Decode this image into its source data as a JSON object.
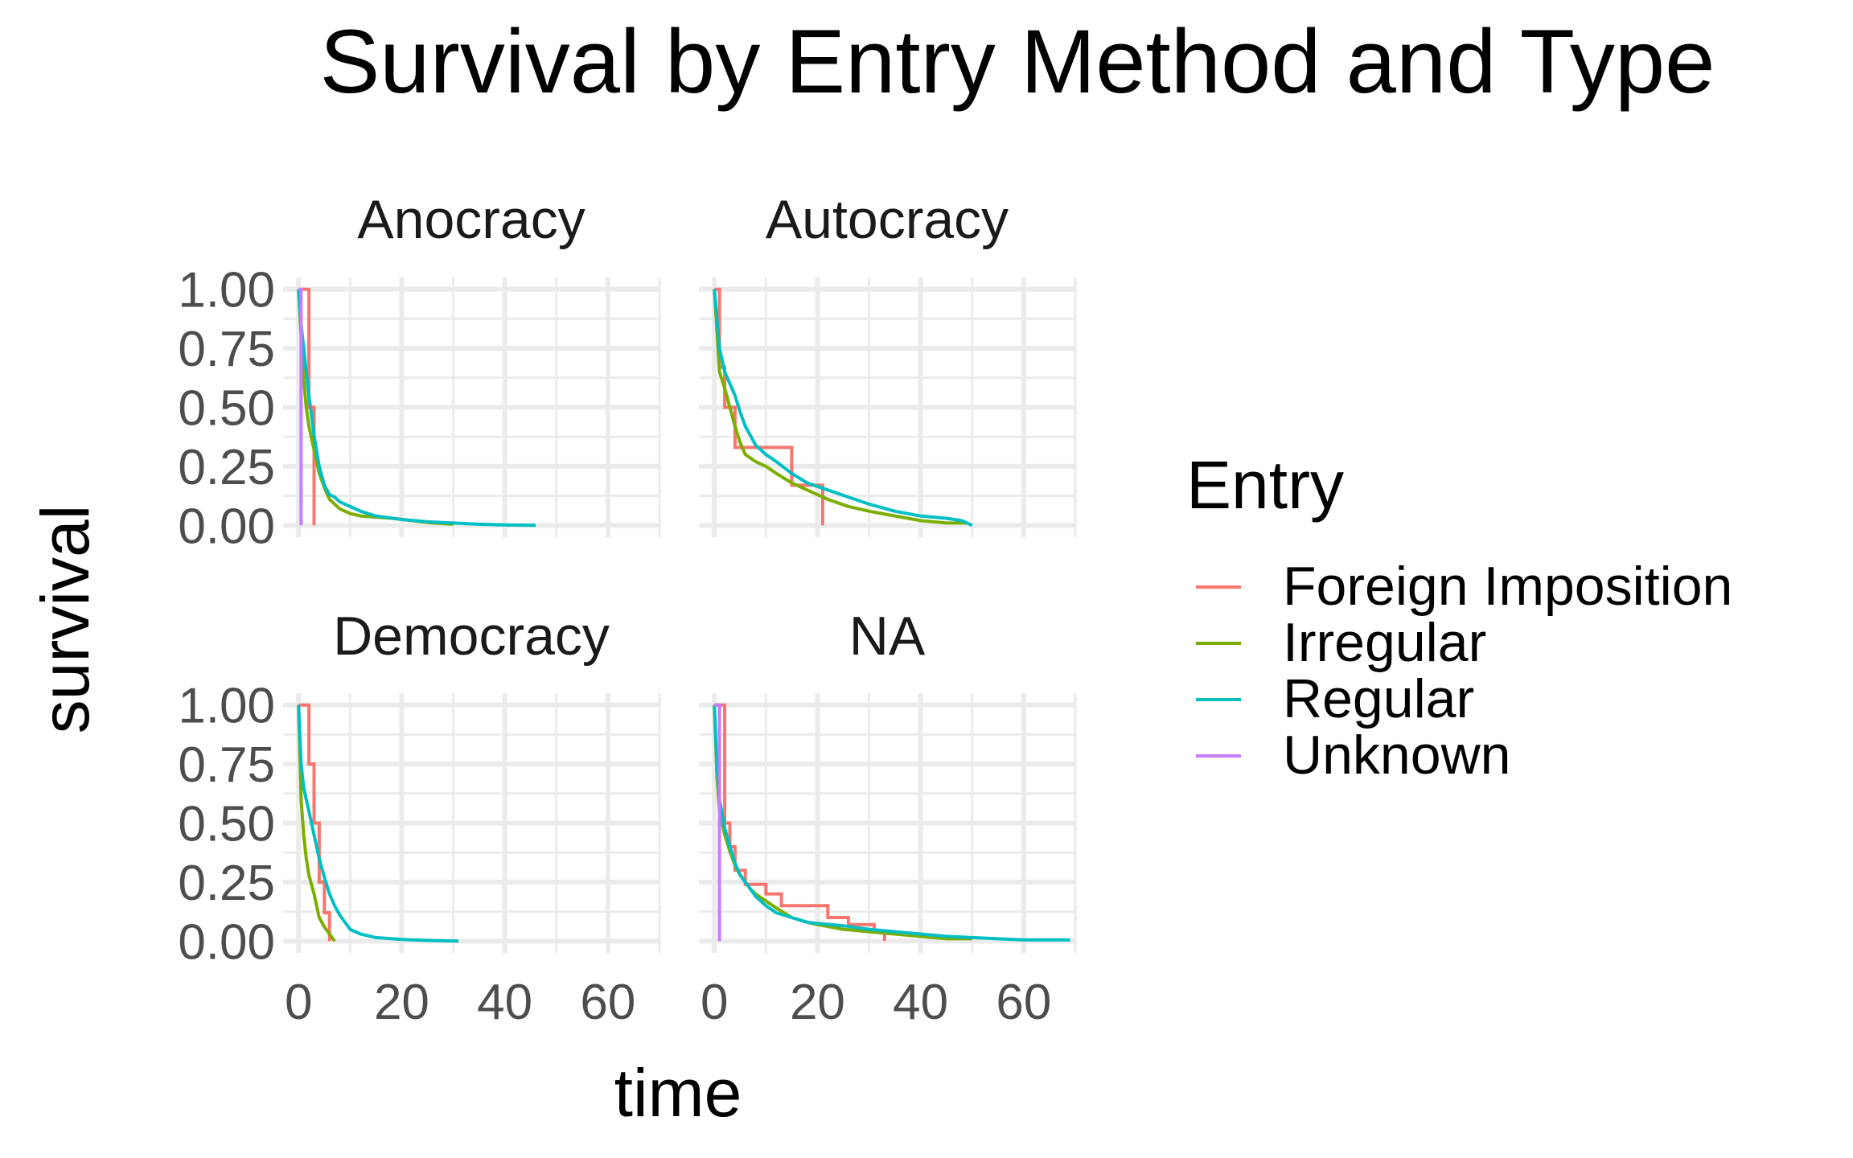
{
  "chart_data": {
    "type": "line",
    "title": "Survival by Entry Method and Type",
    "xlabel": "time",
    "ylabel": "survival",
    "xlim": [
      -3,
      70
    ],
    "ylim": [
      -0.05,
      1.05
    ],
    "x_ticks": [
      0,
      20,
      40,
      60
    ],
    "x_tick_labels": [
      "0",
      "20",
      "40",
      "60"
    ],
    "y_ticks": [
      0,
      0.25,
      0.5,
      0.75,
      1
    ],
    "y_tick_labels": [
      "0.00",
      "0.25",
      "0.50",
      "0.75",
      "1.00"
    ],
    "grid": true,
    "legend": {
      "title": "Entry",
      "position": "right",
      "entries": [
        "Foreign Imposition",
        "Irregular",
        "Regular",
        "Unknown"
      ],
      "colors": [
        "#F8766D",
        "#7CAE00",
        "#00BFC4",
        "#C77CFF"
      ]
    },
    "panels": [
      {
        "title": "Anocracy",
        "series": [
          {
            "name": "Foreign Imposition",
            "x": [
              0,
              2,
              2,
              3,
              3
            ],
            "y": [
              1,
              1,
              0.5,
              0.5,
              0
            ]
          },
          {
            "name": "Irregular",
            "x": [
              0,
              0.5,
              1,
              1.5,
              2,
              3,
              4,
              5,
              6,
              7,
              8,
              10,
              12,
              15,
              18,
              22,
              26,
              30
            ],
            "y": [
              1,
              0.8,
              0.62,
              0.5,
              0.42,
              0.32,
              0.22,
              0.16,
              0.11,
              0.09,
              0.07,
              0.05,
              0.04,
              0.035,
              0.03,
              0.02,
              0.01,
              0.005
            ]
          },
          {
            "name": "Regular",
            "x": [
              0,
              0.5,
              1,
              1.5,
              2,
              3,
              4,
              5,
              6,
              7,
              8,
              10,
              12,
              15,
              20,
              25,
              30,
              35,
              40,
              46
            ],
            "y": [
              1,
              0.85,
              0.75,
              0.65,
              0.55,
              0.38,
              0.25,
              0.17,
              0.13,
              0.12,
              0.1,
              0.08,
              0.06,
              0.04,
              0.025,
              0.015,
              0.01,
              0.005,
              0.002,
              0
            ]
          },
          {
            "name": "Unknown",
            "x": [
              0,
              0.5,
              0.5
            ],
            "y": [
              1,
              1,
              0
            ]
          }
        ]
      },
      {
        "title": "Autocracy",
        "series": [
          {
            "name": "Foreign Imposition",
            "x": [
              0,
              1,
              1,
              2,
              2,
              4,
              4,
              15,
              15,
              21,
              21
            ],
            "y": [
              1,
              1,
              0.67,
              0.67,
              0.5,
              0.5,
              0.33,
              0.33,
              0.17,
              0.17,
              0
            ]
          },
          {
            "name": "Irregular",
            "x": [
              0,
              1,
              2,
              3,
              4,
              5,
              6,
              8,
              10,
              12,
              15,
              18,
              22,
              26,
              30,
              35,
              40,
              45,
              49
            ],
            "y": [
              1,
              0.65,
              0.58,
              0.5,
              0.42,
              0.35,
              0.3,
              0.27,
              0.25,
              0.22,
              0.18,
              0.15,
              0.11,
              0.08,
              0.06,
              0.04,
              0.02,
              0.01,
              0.01
            ]
          },
          {
            "name": "Regular",
            "x": [
              0,
              1,
              2,
              3,
              4,
              5,
              6,
              7,
              8,
              10,
              12,
              15,
              18,
              22,
              26,
              30,
              35,
              40,
              45,
              48,
              50
            ],
            "y": [
              1,
              0.75,
              0.65,
              0.6,
              0.55,
              0.48,
              0.42,
              0.38,
              0.34,
              0.3,
              0.27,
              0.22,
              0.18,
              0.15,
              0.12,
              0.09,
              0.06,
              0.04,
              0.03,
              0.02,
              0
            ]
          }
        ]
      },
      {
        "title": "Democracy",
        "series": [
          {
            "name": "Foreign Imposition",
            "x": [
              0,
              2,
              2,
              3,
              3,
              4,
              4,
              5,
              5,
              6,
              6
            ],
            "y": [
              1,
              1,
              0.75,
              0.75,
              0.5,
              0.5,
              0.25,
              0.25,
              0.12,
              0.12,
              0
            ]
          },
          {
            "name": "Irregular",
            "x": [
              0,
              0.5,
              1,
              1.5,
              2,
              3,
              4,
              5,
              6,
              7
            ],
            "y": [
              1,
              0.6,
              0.45,
              0.35,
              0.28,
              0.2,
              0.1,
              0.06,
              0.03,
              0
            ]
          },
          {
            "name": "Regular",
            "x": [
              0,
              0.5,
              1,
              2,
              3,
              4,
              5,
              6,
              7,
              8,
              9,
              10,
              12,
              15,
              20,
              25,
              31
            ],
            "y": [
              1,
              0.75,
              0.65,
              0.55,
              0.45,
              0.35,
              0.27,
              0.2,
              0.15,
              0.11,
              0.08,
              0.05,
              0.03,
              0.015,
              0.007,
              0.003,
              0
            ]
          }
        ]
      },
      {
        "title": "NA",
        "series": [
          {
            "name": "Foreign Imposition",
            "x": [
              0,
              2,
              2,
              3,
              3,
              4,
              4,
              6,
              6,
              10,
              10,
              13,
              13,
              22,
              22,
              26,
              26,
              31,
              31,
              33,
              33
            ],
            "y": [
              1,
              1,
              0.5,
              0.5,
              0.4,
              0.4,
              0.3,
              0.3,
              0.24,
              0.24,
              0.2,
              0.2,
              0.15,
              0.15,
              0.1,
              0.1,
              0.07,
              0.07,
              0.04,
              0.04,
              0
            ]
          },
          {
            "name": "Irregular",
            "x": [
              0,
              0.5,
              1,
              2,
              3,
              4,
              5,
              6,
              7,
              8,
              10,
              12,
              15,
              18,
              20,
              25,
              30,
              35,
              40,
              45,
              50
            ],
            "y": [
              1,
              0.7,
              0.55,
              0.45,
              0.38,
              0.32,
              0.28,
              0.25,
              0.22,
              0.2,
              0.17,
              0.14,
              0.1,
              0.08,
              0.07,
              0.05,
              0.04,
              0.03,
              0.02,
              0.01,
              0.01
            ]
          },
          {
            "name": "Regular",
            "x": [
              0,
              0.5,
              1,
              2,
              3,
              4,
              5,
              6,
              7,
              8,
              10,
              12,
              15,
              18,
              20,
              25,
              30,
              35,
              40,
              45,
              50,
              55,
              60,
              69
            ],
            "y": [
              1,
              0.75,
              0.6,
              0.48,
              0.4,
              0.33,
              0.28,
              0.25,
              0.22,
              0.19,
              0.15,
              0.12,
              0.1,
              0.08,
              0.075,
              0.065,
              0.05,
              0.04,
              0.03,
              0.02,
              0.015,
              0.01,
              0.005,
              0.005
            ]
          },
          {
            "name": "Unknown",
            "x": [
              0,
              1,
              1
            ],
            "y": [
              1,
              1,
              0
            ]
          }
        ]
      }
    ]
  }
}
